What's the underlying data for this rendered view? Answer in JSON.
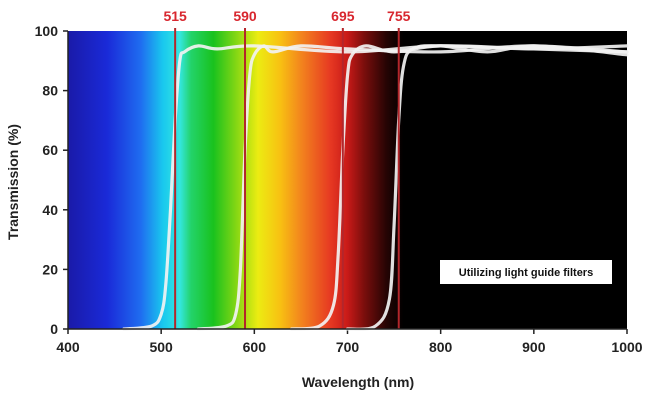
{
  "chart_data": {
    "type": "line",
    "title": "",
    "xlabel": "Wavelength (nm)",
    "ylabel": "Transmission (%)",
    "xlim": [
      400,
      1000
    ],
    "ylim": [
      0,
      100
    ],
    "x_ticks": [
      400,
      500,
      600,
      700,
      800,
      900,
      1000
    ],
    "y_ticks": [
      0,
      20,
      40,
      60,
      80,
      100
    ],
    "background": "visible light spectrum gradient (violet to red) fading to black above ~720 nm",
    "cut_on_markers": [
      {
        "label": "515",
        "x": 515
      },
      {
        "label": "590",
        "x": 590
      },
      {
        "label": "695",
        "x": 695
      },
      {
        "label": "755",
        "x": 755
      }
    ],
    "series": [
      {
        "cut_on": 515,
        "x": [
          460,
          490,
          500,
          505,
          510,
          515,
          520,
          525,
          540,
          560,
          600,
          700,
          800,
          900,
          1000
        ],
        "y": [
          0,
          1,
          5,
          15,
          40,
          70,
          90,
          93,
          95,
          94,
          95,
          93,
          95,
          94,
          93
        ]
      },
      {
        "cut_on": 590,
        "x": [
          540,
          570,
          580,
          585,
          590,
          595,
          600,
          610,
          620,
          650,
          700,
          800,
          900,
          1000
        ],
        "y": [
          0,
          1,
          5,
          20,
          60,
          85,
          92,
          95,
          93,
          95,
          94,
          93,
          95,
          92
        ]
      },
      {
        "cut_on": 695,
        "x": [
          640,
          670,
          685,
          690,
          695,
          700,
          705,
          720,
          750,
          800,
          900,
          1000
        ],
        "y": [
          0,
          1,
          8,
          25,
          60,
          85,
          92,
          95,
          93,
          95,
          94,
          95
        ]
      },
      {
        "cut_on": 755,
        "x": [
          700,
          730,
          745,
          750,
          755,
          760,
          770,
          800,
          850,
          900,
          1000
        ],
        "y": [
          0,
          1,
          10,
          35,
          70,
          88,
          94,
          95,
          93,
          95,
          93
        ]
      }
    ],
    "annotation": "Utilizing light guide filters",
    "colors": {
      "curve": "#f2f2f2",
      "cut_line": "#b3262b",
      "cut_text": "#d8262e",
      "axis": "#222222"
    }
  }
}
